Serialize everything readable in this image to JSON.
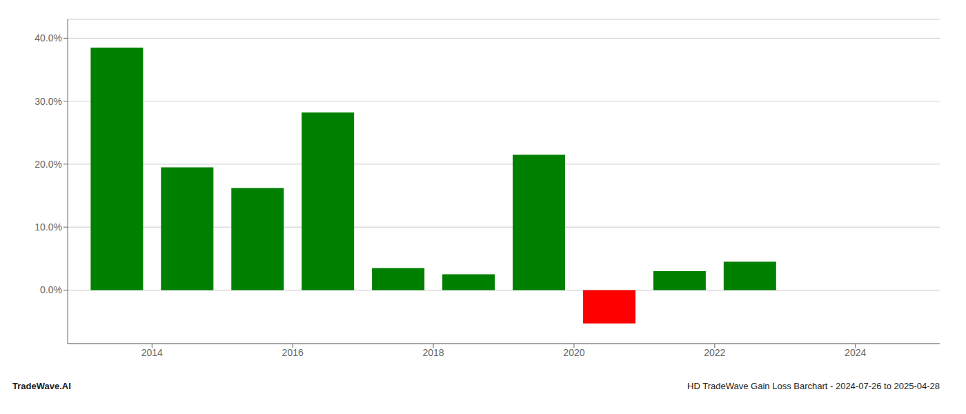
{
  "chart_data": {
    "type": "bar",
    "title": "HD TradeWave Gain Loss Barchart - 2024-07-26 to 2025-04-28",
    "annotations": [
      "TradeWave.AI"
    ],
    "x": [
      2013.5,
      2014.5,
      2015.5,
      2016.5,
      2017.5,
      2018.5,
      2019.5,
      2020.5,
      2021.5,
      2022.5
    ],
    "values": [
      0.385,
      0.195,
      0.162,
      0.282,
      0.035,
      0.025,
      0.215,
      -0.053,
      0.03,
      0.045
    ],
    "colors": [
      "#008000",
      "#008000",
      "#008000",
      "#008000",
      "#008000",
      "#008000",
      "#008000",
      "#ff0000",
      "#008000",
      "#008000"
    ],
    "xlim": [
      2012.8,
      2025.2
    ],
    "xticks": [
      2014,
      2016,
      2018,
      2020,
      2022,
      2024
    ],
    "ylim": [
      -0.085,
      0.43
    ],
    "yticks": [
      {
        "value": 0,
        "label": "0.0%"
      },
      {
        "value": 0.1,
        "label": "10.0%"
      },
      {
        "value": 0.2,
        "label": "20.0%"
      },
      {
        "value": 0.3,
        "label": "30.0%"
      },
      {
        "value": 0.4,
        "label": "40.0%"
      }
    ],
    "grid": true
  }
}
